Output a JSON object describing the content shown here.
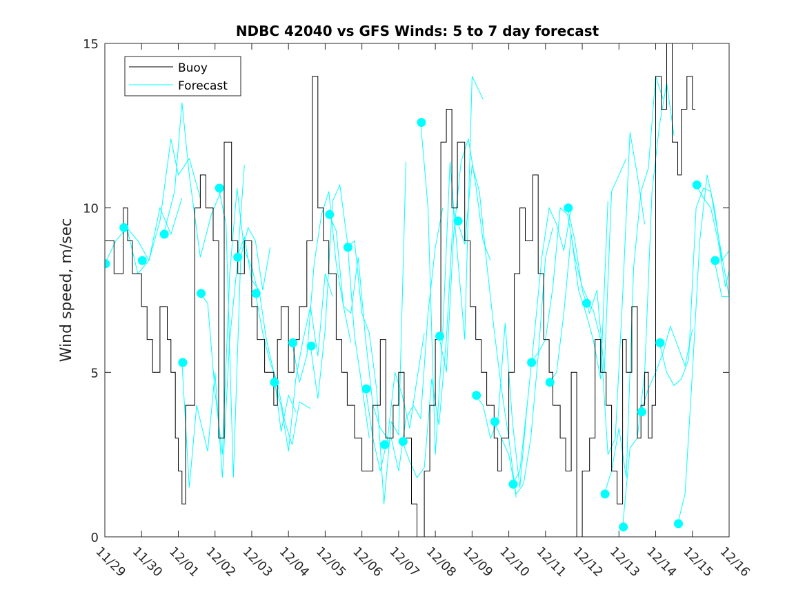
{
  "chart_data": {
    "type": "line",
    "title": "NDBC 42040 vs GFS Winds: 5 to 7 day forecast",
    "xlabel": "",
    "ylabel": "Wind speed, m/sec",
    "xlim": [
      0,
      17
    ],
    "ylim": [
      0,
      15
    ],
    "x_tick_values": [
      0,
      1,
      2,
      3,
      4,
      5,
      6,
      7,
      8,
      9,
      10,
      11,
      12,
      13,
      14,
      15,
      16,
      17
    ],
    "x_tick_labels": [
      "11/29",
      "11/30",
      "12/01",
      "12/02",
      "12/03",
      "12/04",
      "12/05",
      "12/06",
      "12/07",
      "12/08",
      "12/09",
      "12/10",
      "12/11",
      "12/12",
      "12/13",
      "12/14",
      "12/15",
      "12/16"
    ],
    "y_tick_values": [
      0,
      5,
      10,
      15
    ],
    "y_tick_labels": [
      "0",
      "5",
      "10",
      "15"
    ],
    "grid": false,
    "legend": {
      "location": "top-left",
      "entries": [
        "Buoy",
        "Forecast"
      ]
    },
    "colors": {
      "buoy": "#000000",
      "forecast": "#00ffff",
      "markers": "#00ffff",
      "axes": "#262626"
    },
    "series": [
      {
        "name": "Buoy",
        "x": [
          0,
          0.25,
          0.5,
          0.62,
          0.75,
          1.0,
          1.15,
          1.3,
          1.5,
          1.7,
          1.8,
          1.92,
          2.0,
          2.1,
          2.2,
          2.45,
          2.6,
          2.75,
          2.95,
          3.1,
          3.25,
          3.45,
          3.62,
          3.8,
          4.0,
          4.15,
          4.35,
          4.6,
          4.7,
          4.8,
          5.0,
          5.15,
          5.3,
          5.5,
          5.65,
          5.8,
          5.95,
          6.1,
          6.3,
          6.45,
          6.6,
          6.8,
          7.0,
          7.3,
          7.5,
          7.65,
          7.85,
          8.0,
          8.15,
          8.35,
          8.5,
          8.7,
          8.85,
          9.0,
          9.15,
          9.3,
          9.45,
          9.6,
          9.8,
          9.95,
          10.1,
          10.25,
          10.4,
          10.6,
          10.7,
          10.8,
          11.0,
          11.15,
          11.3,
          11.45,
          11.65,
          11.8,
          11.95,
          12.1,
          12.2,
          12.4,
          12.55,
          12.7,
          12.85,
          13.0,
          13.2,
          13.35,
          13.5,
          13.65,
          13.8,
          13.95,
          14.1,
          14.2,
          14.35,
          14.5,
          14.6,
          14.7,
          14.8,
          14.9,
          15.0,
          15.15,
          15.3,
          15.45,
          15.6,
          15.7,
          15.85,
          16.0
        ],
        "values": [
          9,
          8,
          10,
          9,
          8,
          7,
          6,
          5,
          7,
          6,
          5,
          3,
          2,
          1,
          4,
          10,
          11,
          10,
          9,
          3,
          12,
          9,
          8,
          9,
          7,
          6,
          5,
          4,
          6,
          7,
          5,
          6,
          7,
          9,
          14,
          10,
          9,
          8,
          6,
          5,
          4,
          3,
          2,
          4,
          6,
          3,
          4,
          5,
          3,
          1,
          0,
          2,
          4,
          6,
          12,
          13,
          10,
          12,
          9,
          7,
          6,
          5,
          4,
          3,
          2,
          3,
          5,
          8,
          10,
          9,
          11,
          8,
          6,
          5,
          4,
          3,
          2,
          5,
          0,
          2,
          3,
          6,
          5,
          4,
          2,
          1,
          6,
          5,
          7,
          3,
          4,
          5,
          3,
          4,
          14,
          13,
          15,
          12,
          11,
          13,
          14,
          13
        ]
      },
      {
        "name": "Forecast",
        "segments": [
          {
            "x": [
              0,
              0.3,
              0.6,
              0.9,
              1.2,
              1.5,
              1.8,
              2.1
            ],
            "values": [
              8.3,
              9.0,
              9.4,
              8.0,
              8.4,
              10.0,
              9.2,
              10.3
            ]
          },
          {
            "x": [
              0.6,
              0.9,
              1.2,
              1.5,
              1.8,
              2.0,
              2.3,
              2.6
            ],
            "values": [
              9.4,
              9.0,
              8.4,
              9.6,
              12.1,
              11.0,
              11.5,
              10.3
            ]
          },
          {
            "x": [
              1.6,
              1.9,
              2.1,
              2.3,
              2.6,
              2.9,
              3.2
            ],
            "values": [
              9.2,
              10.5,
              13.2,
              11.0,
              8.5,
              9.8,
              10.6
            ]
          },
          {
            "x": [
              2.1,
              2.3,
              2.5,
              2.8,
              3.0,
              3.2,
              3.4,
              3.6,
              3.8
            ],
            "values": [
              5.3,
              1.5,
              4.0,
              2.6,
              5.0,
              1.8,
              6.0,
              8.2,
              11.3
            ]
          },
          {
            "x": [
              2.6,
              2.8,
              3.0,
              3.2,
              3.4,
              3.6,
              3.8,
              4.0,
              4.2
            ],
            "values": [
              7.4,
              7.1,
              4.4,
              2.5,
              8.0,
              10.6,
              8.7,
              8.2,
              7.3
            ]
          },
          {
            "x": [
              3.1,
              3.3,
              3.5,
              3.7,
              3.9,
              4.1,
              4.3,
              4.5
            ],
            "values": [
              10.6,
              9.5,
              1.8,
              8.5,
              9.4,
              9.0,
              7.5,
              8.8
            ]
          },
          {
            "x": [
              3.6,
              3.8,
              4.0,
              4.2,
              4.4,
              4.6,
              4.8,
              5.0,
              5.2
            ],
            "values": [
              8.5,
              9.1,
              7.8,
              7.5,
              6.0,
              5.0,
              3.2,
              4.3,
              3.8
            ]
          },
          {
            "x": [
              4.1,
              4.3,
              4.5,
              4.7,
              4.9,
              5.1,
              5.3,
              5.6
            ],
            "values": [
              7.4,
              6.2,
              5.3,
              4.7,
              3.5,
              2.8,
              4.1,
              3.9
            ]
          },
          {
            "x": [
              4.6,
              4.8,
              5.0,
              5.2,
              5.4,
              5.6,
              5.8,
              6.0,
              6.2
            ],
            "values": [
              4.7,
              4.0,
              2.6,
              4.8,
              6.0,
              7.0,
              5.5,
              8.0,
              7.3
            ]
          },
          {
            "x": [
              5.1,
              5.3,
              5.5,
              5.7,
              5.9,
              6.1,
              6.3,
              6.5,
              6.7
            ],
            "values": [
              5.9,
              4.7,
              5.5,
              8.3,
              9.8,
              10.5,
              8.3,
              7.0,
              5.9
            ]
          },
          {
            "x": [
              5.6,
              5.8,
              6.0,
              6.2,
              6.4,
              6.6,
              6.8,
              7.0,
              7.2
            ],
            "values": [
              5.8,
              4.2,
              6.3,
              10.2,
              10.7,
              9.0,
              6.1,
              4.6,
              3.0
            ]
          },
          {
            "x": [
              6.1,
              6.3,
              6.5,
              6.7,
              6.9,
              7.1,
              7.3,
              7.5,
              7.7
            ],
            "values": [
              9.8,
              9.3,
              7.0,
              6.8,
              8.5,
              6.0,
              4.0,
              3.3,
              3.0
            ]
          },
          {
            "x": [
              6.6,
              6.8,
              7.0,
              7.2,
              7.4,
              7.6,
              7.8,
              8.0,
              8.2
            ],
            "values": [
              8.8,
              9.0,
              6.8,
              6.2,
              4.5,
              1.0,
              3.5,
              3.1,
              11.4
            ]
          },
          {
            "x": [
              7.1,
              7.3,
              7.5,
              7.7,
              7.9,
              8.1,
              8.3,
              8.5,
              8.7
            ],
            "values": [
              4.5,
              3.0,
              2.0,
              3.0,
              5.0,
              4.3,
              3.3,
              4.8,
              6.2
            ]
          },
          {
            "x": [
              7.6,
              7.8,
              8.0,
              8.2,
              8.4,
              8.6,
              8.8,
              9.0,
              9.2
            ],
            "values": [
              2.8,
              3.0,
              2.0,
              3.6,
              4.0,
              3.6,
              6.8,
              8.8,
              10.0
            ]
          },
          {
            "x": [
              8.1,
              8.3,
              8.5,
              8.7,
              8.9,
              9.1,
              9.3,
              9.5
            ],
            "values": [
              2.9,
              2.3,
              1.8,
              2.1,
              4.8,
              3.4,
              6.0,
              10.0
            ]
          },
          {
            "x": [
              8.6,
              8.8,
              9.0,
              9.2,
              9.4,
              9.6,
              9.8,
              10.0,
              10.3
            ],
            "values": [
              12.6,
              10.0,
              2.5,
              6.2,
              11.4,
              8.6,
              6.0,
              14.0,
              13.3
            ]
          },
          {
            "x": [
              9.1,
              9.3,
              9.5,
              9.7,
              9.9,
              10.1,
              10.3,
              10.5
            ],
            "values": [
              6.1,
              5.0,
              9.2,
              11.4,
              12.1,
              10.7,
              9.0,
              8.4
            ]
          },
          {
            "x": [
              9.6,
              9.8,
              10.0,
              10.2,
              10.4,
              10.6,
              10.8,
              11.0,
              11.2
            ],
            "values": [
              9.6,
              8.9,
              11.3,
              10.5,
              8.3,
              6.3,
              4.5,
              3.0,
              1.2
            ]
          },
          {
            "x": [
              10.1,
              10.3,
              10.5,
              10.7,
              10.9,
              11.1,
              11.3,
              11.5
            ],
            "values": [
              4.3,
              4.0,
              3.0,
              3.5,
              6.5,
              3.5,
              1.5,
              4.0
            ]
          },
          {
            "x": [
              10.6,
              10.8,
              11.0,
              11.2,
              11.4,
              11.6,
              11.8,
              12.0,
              12.2
            ],
            "values": [
              3.5,
              3.0,
              2.5,
              1.3,
              1.6,
              3.0,
              5.5,
              8.5,
              9.4
            ]
          },
          {
            "x": [
              11.1,
              11.3,
              11.5,
              11.7,
              11.9,
              12.1,
              12.3,
              12.5,
              12.7
            ],
            "values": [
              1.6,
              2.0,
              4.0,
              6.2,
              8.5,
              10.0,
              9.5,
              8.7,
              10.0
            ]
          },
          {
            "x": [
              11.6,
              11.8,
              12.0,
              12.2,
              12.4,
              12.6,
              12.8,
              13.0,
              13.2
            ],
            "values": [
              5.3,
              5.6,
              6.0,
              7.6,
              10.0,
              9.8,
              8.5,
              7.6,
              7.1
            ]
          },
          {
            "x": [
              12.1,
              12.3,
              12.5,
              12.7,
              12.9,
              13.1,
              13.3,
              13.5,
              13.7
            ],
            "values": [
              4.7,
              5.0,
              6.8,
              9.2,
              7.5,
              6.8,
              6.0,
              4.8,
              10.2
            ]
          },
          {
            "x": [
              12.6,
              12.8,
              13.0,
              13.2,
              13.4,
              13.6,
              13.8,
              14.0,
              14.2
            ],
            "values": [
              10.0,
              9.0,
              7.5,
              6.8,
              7.5,
              5.0,
              10.5,
              11.0,
              11.5
            ]
          },
          {
            "x": [
              13.1,
              13.3,
              13.5,
              13.7,
              13.9,
              14.1,
              14.3,
              14.5,
              14.7
            ],
            "values": [
              7.1,
              6.9,
              6.0,
              2.5,
              3.0,
              7.3,
              12.3,
              11.0,
              9.5
            ]
          },
          {
            "x": [
              13.6,
              13.8,
              14.0,
              14.2,
              14.4,
              14.6,
              14.8,
              15.0,
              15.2
            ],
            "values": [
              1.3,
              2.0,
              3.3,
              1.8,
              8.2,
              10.5,
              11.2,
              14.0,
              13.3
            ]
          },
          {
            "x": [
              14.1,
              14.3,
              14.5,
              14.7,
              14.9,
              15.1,
              15.3,
              15.5
            ],
            "values": [
              0.3,
              2.7,
              3.0,
              5.0,
              10.5,
              12.5,
              13.8,
              12.2
            ]
          },
          {
            "x": [
              14.6,
              14.8,
              15.0,
              15.2,
              15.4,
              15.6,
              15.8,
              16.0
            ],
            "values": [
              3.8,
              4.5,
              5.0,
              5.6,
              6.4,
              5.8,
              5.2,
              6.3
            ]
          },
          {
            "x": [
              15.1,
              15.3,
              15.5,
              15.7,
              15.9,
              16.1,
              16.3,
              16.5,
              16.7,
              17.0
            ],
            "values": [
              5.9,
              5.0,
              4.6,
              4.8,
              5.4,
              10.0,
              10.6,
              10.5,
              9.2,
              7.3
            ]
          },
          {
            "x": [
              15.6,
              15.8,
              16.0,
              16.2,
              16.4,
              16.6,
              16.8,
              17.0
            ],
            "values": [
              0.4,
              1.3,
              5.0,
              9.0,
              11.0,
              10.0,
              8.4,
              8.7
            ]
          },
          {
            "x": [
              16.1,
              16.3,
              16.5,
              16.7,
              16.9,
              17.0
            ],
            "values": [
              10.7,
              10.3,
              10.0,
              9.0,
              7.6,
              8.1
            ]
          },
          {
            "x": [
              16.6,
              16.8,
              17.0
            ],
            "values": [
              8.4,
              7.3,
              7.3
            ]
          }
        ]
      }
    ],
    "markers": {
      "x": [
        0.02,
        0.52,
        1.02,
        1.62,
        2.12,
        2.62,
        3.12,
        3.62,
        4.12,
        4.62,
        5.12,
        5.62,
        6.12,
        6.62,
        7.12,
        7.62,
        8.12,
        8.62,
        9.12,
        9.62,
        10.12,
        10.62,
        11.12,
        11.62,
        12.12,
        12.62,
        13.12,
        13.62,
        14.12,
        14.62,
        15.12,
        15.62,
        16.12,
        16.62
      ],
      "values": [
        8.3,
        9.4,
        8.4,
        9.2,
        5.3,
        7.4,
        10.6,
        8.5,
        7.4,
        4.7,
        5.9,
        5.8,
        9.8,
        8.8,
        4.5,
        2.8,
        2.9,
        12.6,
        6.1,
        9.6,
        4.3,
        3.5,
        1.6,
        5.3,
        4.7,
        10.0,
        7.1,
        1.3,
        0.3,
        3.8,
        5.9,
        0.4,
        10.7,
        8.4
      ]
    }
  }
}
